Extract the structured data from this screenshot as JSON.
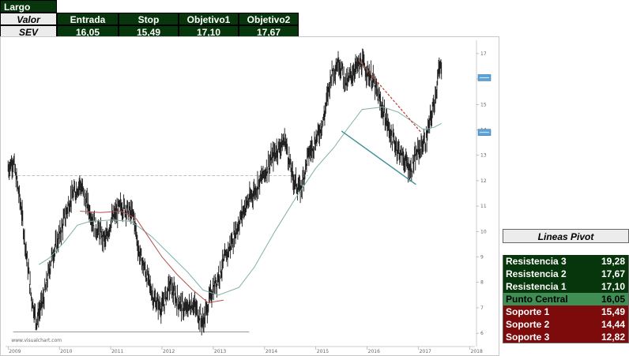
{
  "trade": {
    "direction": "Largo",
    "header": {
      "label": "Valor",
      "columns": [
        "Entrada",
        "Stop",
        "Objetivo1",
        "Objetivo2"
      ]
    },
    "row": {
      "ticker": "SEV",
      "values": [
        "16,05",
        "15,49",
        "17,10",
        "17,67"
      ]
    }
  },
  "chart_data": {
    "type": "line",
    "title": "",
    "xlabel": "",
    "ylabel": "",
    "x_ticks": [
      "2009",
      "2010",
      "2011",
      "2012",
      "2013",
      "2014",
      "2015",
      "2016",
      "2017",
      "2018"
    ],
    "y_ticks": [
      6,
      7,
      8,
      9,
      10,
      11,
      12,
      13,
      14,
      15,
      16,
      17
    ],
    "ylim": [
      5.6,
      17.4
    ],
    "xlim": [
      2008.95,
      2018.1
    ],
    "watermark": "www.visualchart.com",
    "colors": {
      "price": "#1a1a1a",
      "ma_slow": "#b5524f",
      "ma_fast": "#7fb0a8",
      "trend_line": "#3c8f99",
      "resistance_line": "#c0392b",
      "level_line": "#bbbbbb",
      "tag": "#5ba3d8"
    },
    "price_anchors": [
      [
        2009.0,
        12.5
      ],
      [
        2009.1,
        12.8
      ],
      [
        2009.25,
        11.0
      ],
      [
        2009.45,
        7.5
      ],
      [
        2009.55,
        6.5
      ],
      [
        2009.7,
        7.4
      ],
      [
        2009.85,
        9.0
      ],
      [
        2010.0,
        9.8
      ],
      [
        2010.2,
        11.2
      ],
      [
        2010.4,
        11.9
      ],
      [
        2010.5,
        11.3
      ],
      [
        2010.7,
        10.2
      ],
      [
        2010.9,
        9.6
      ],
      [
        2011.0,
        10.4
      ],
      [
        2011.2,
        11.0
      ],
      [
        2011.3,
        10.9
      ],
      [
        2011.45,
        10.6
      ],
      [
        2011.55,
        9.2
      ],
      [
        2011.7,
        8.3
      ],
      [
        2011.85,
        7.3
      ],
      [
        2012.0,
        7.0
      ],
      [
        2012.15,
        7.9
      ],
      [
        2012.3,
        7.3
      ],
      [
        2012.45,
        6.9
      ],
      [
        2012.6,
        7.2
      ],
      [
        2012.8,
        6.4
      ],
      [
        2012.95,
        7.5
      ],
      [
        2013.15,
        8.5
      ],
      [
        2013.4,
        9.8
      ],
      [
        2013.6,
        10.9
      ],
      [
        2013.8,
        11.6
      ],
      [
        2014.0,
        12.3
      ],
      [
        2014.2,
        13.1
      ],
      [
        2014.4,
        13.6
      ],
      [
        2014.55,
        12.1
      ],
      [
        2014.7,
        11.6
      ],
      [
        2014.85,
        13.0
      ],
      [
        2015.0,
        13.6
      ],
      [
        2015.15,
        14.4
      ],
      [
        2015.3,
        16.2
      ],
      [
        2015.45,
        16.7
      ],
      [
        2015.6,
        15.8
      ],
      [
        2015.75,
        16.4
      ],
      [
        2015.9,
        16.6
      ],
      [
        2016.1,
        16.0
      ],
      [
        2016.3,
        14.8
      ],
      [
        2016.5,
        13.6
      ],
      [
        2016.7,
        12.9
      ],
      [
        2016.85,
        12.4
      ],
      [
        2017.0,
        13.2
      ],
      [
        2017.15,
        13.6
      ],
      [
        2017.3,
        15.0
      ],
      [
        2017.4,
        16.3
      ],
      [
        2017.45,
        16.5
      ]
    ],
    "ma_slow_anchors": [
      [
        2010.4,
        10.8
      ],
      [
        2010.8,
        10.75
      ],
      [
        2011.2,
        10.8
      ],
      [
        2011.5,
        10.5
      ],
      [
        2011.8,
        9.6
      ],
      [
        2012.0,
        9.0
      ],
      [
        2012.3,
        8.3
      ],
      [
        2012.6,
        7.7
      ],
      [
        2012.9,
        7.2
      ],
      [
        2013.2,
        7.3
      ]
    ],
    "ma_fast_anchors": [
      [
        2009.6,
        8.7
      ],
      [
        2009.8,
        8.95
      ],
      [
        2010.1,
        9.6
      ],
      [
        2010.35,
        10.25
      ],
      [
        2010.6,
        10.4
      ],
      [
        2011.0,
        10.45
      ],
      [
        2011.4,
        10.4
      ],
      [
        2011.8,
        9.8
      ],
      [
        2012.2,
        9.0
      ],
      [
        2012.5,
        8.4
      ],
      [
        2012.8,
        7.7
      ],
      [
        2013.1,
        7.5
      ],
      [
        2013.5,
        7.8
      ],
      [
        2013.8,
        8.6
      ],
      [
        2014.2,
        10.0
      ],
      [
        2014.6,
        11.3
      ],
      [
        2015.0,
        12.5
      ],
      [
        2015.35,
        13.3
      ],
      [
        2015.6,
        14.0
      ],
      [
        2015.9,
        14.8
      ],
      [
        2016.3,
        14.9
      ],
      [
        2016.6,
        14.7
      ],
      [
        2016.9,
        14.3
      ],
      [
        2017.1,
        14.0
      ],
      [
        2017.3,
        14.1
      ],
      [
        2017.45,
        14.25
      ]
    ],
    "lines": {
      "level_2010": {
        "x": [
          2009.0,
          2014.85
        ],
        "y": [
          12.2,
          12.2
        ]
      },
      "support_bottom": {
        "x": [
          2009.1,
          2013.7
        ],
        "y": [
          6.05,
          6.05
        ]
      },
      "down_trend": {
        "x": [
          2015.5,
          2016.95
        ],
        "y": [
          13.95,
          11.85
        ]
      },
      "resistance": {
        "x": [
          2015.85,
          2017.05
        ],
        "y": [
          16.7,
          13.9
        ]
      }
    },
    "tags": [
      {
        "y": 16.05
      },
      {
        "y": 13.9
      }
    ]
  },
  "pivot": {
    "title": "Lineas Pivot",
    "resistances": [
      {
        "label": "Resistencia 3",
        "value": "19,28"
      },
      {
        "label": "Resistencia 2",
        "value": "17,67"
      },
      {
        "label": "Resistencia 1",
        "value": "17,10"
      }
    ],
    "central": {
      "label": "Punto Central",
      "value": "16,05"
    },
    "supports": [
      {
        "label": "Soporte 1",
        "value": "15,49"
      },
      {
        "label": "Soporte 2",
        "value": "14,44"
      },
      {
        "label": "Soporte 3",
        "value": "12,82"
      }
    ]
  }
}
